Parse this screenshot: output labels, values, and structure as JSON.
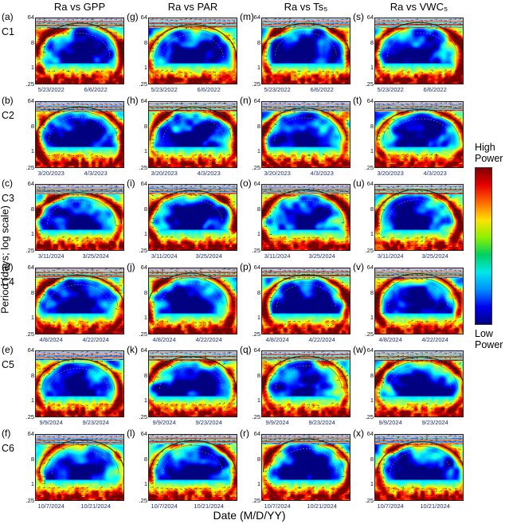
{
  "figure": {
    "x_axis_label": "Date (M/D/YY)",
    "y_axis_label": "Period (days; log scale)",
    "y_ticks": [
      "64",
      "8",
      "1",
      ".25"
    ],
    "column_titles": [
      "Ra vs GPP",
      "Ra vs PAR",
      "Ra vs Ts₅",
      "Ra vs VWC₅"
    ],
    "colorbar": {
      "top_label": "High Power",
      "bottom_label": "Low Power",
      "gradient": [
        "#7f0000",
        "#e80000",
        "#ff6a00",
        "#ffe100",
        "#8cf000",
        "#00d060",
        "#00e8e8",
        "#0090ff",
        "#0000f0",
        "#00007f"
      ]
    },
    "rows": [
      {
        "site": "C1",
        "letters": [
          "(a)",
          "(g)",
          "(m)",
          "(s)"
        ],
        "dates": [
          "5/23/2022",
          "6/6/2022"
        ]
      },
      {
        "site": "C2",
        "letters": [
          "(b)",
          "(h)",
          "(n)",
          "(t)"
        ],
        "dates": [
          "3/20/2023",
          "4/3/2023"
        ]
      },
      {
        "site": "C3",
        "letters": [
          "(c)",
          "(i)",
          "(o)",
          "(u)"
        ],
        "dates": [
          "3/11/2024",
          "3/25/2024"
        ]
      },
      {
        "site": "C4",
        "letters": [
          "(d)",
          "(j)",
          "(p)",
          "(v)"
        ],
        "dates": [
          "4/8/2024",
          "4/22/2024"
        ]
      },
      {
        "site": "C5",
        "letters": [
          "(e)",
          "(k)",
          "(q)",
          "(w)"
        ],
        "dates": [
          "9/9/2024",
          "9/23/2024"
        ]
      },
      {
        "site": "C6",
        "letters": [
          "(f)",
          "(l)",
          "(r)",
          "(x)"
        ],
        "dates": [
          "10/7/2024",
          "10/21/2024"
        ]
      }
    ]
  },
  "chart_data": {
    "type": "heatmap",
    "subtype": "wavelet-coherence-grid",
    "grid": {
      "rows": 6,
      "cols": 4
    },
    "column_variables": [
      "Ra vs GPP",
      "Ra vs PAR",
      "Ra vs Ts₅",
      "Ra vs VWC₅"
    ],
    "row_campaigns": [
      "C1",
      "C2",
      "C3",
      "C4",
      "C5",
      "C6"
    ],
    "x_axis": {
      "label": "Date (M/D/YY)",
      "tick_dates_by_row": [
        [
          "5/23/2022",
          "6/6/2022"
        ],
        [
          "3/20/2023",
          "4/3/2023"
        ],
        [
          "3/11/2024",
          "3/25/2024"
        ],
        [
          "4/8/2024",
          "4/22/2024"
        ],
        [
          "9/9/2024",
          "9/23/2024"
        ],
        [
          "10/7/2024",
          "10/21/2024"
        ]
      ]
    },
    "y_axis": {
      "label": "Period (days; log scale)",
      "scale": "log",
      "ticks": [
        64,
        8,
        1,
        0.25
      ],
      "range": [
        0.25,
        64
      ]
    },
    "color_scale": {
      "high": "High Power",
      "low": "Low Power",
      "colormap": "jet",
      "legend_position": "right"
    },
    "panels": [
      {
        "letter": "a",
        "campaign": "C1",
        "pair": "Ra vs GPP"
      },
      {
        "letter": "g",
        "campaign": "C1",
        "pair": "Ra vs PAR"
      },
      {
        "letter": "m",
        "campaign": "C1",
        "pair": "Ra vs Ts₅"
      },
      {
        "letter": "s",
        "campaign": "C1",
        "pair": "Ra vs VWC₅"
      },
      {
        "letter": "b",
        "campaign": "C2",
        "pair": "Ra vs GPP"
      },
      {
        "letter": "h",
        "campaign": "C2",
        "pair": "Ra vs PAR"
      },
      {
        "letter": "n",
        "campaign": "C2",
        "pair": "Ra vs Ts₅"
      },
      {
        "letter": "t",
        "campaign": "C2",
        "pair": "Ra vs VWC₅"
      },
      {
        "letter": "c",
        "campaign": "C3",
        "pair": "Ra vs GPP"
      },
      {
        "letter": "i",
        "campaign": "C3",
        "pair": "Ra vs PAR"
      },
      {
        "letter": "o",
        "campaign": "C3",
        "pair": "Ra vs Ts₅"
      },
      {
        "letter": "u",
        "campaign": "C3",
        "pair": "Ra vs VWC₅"
      },
      {
        "letter": "d",
        "campaign": "C4",
        "pair": "Ra vs GPP"
      },
      {
        "letter": "j",
        "campaign": "C4",
        "pair": "Ra vs PAR"
      },
      {
        "letter": "p",
        "campaign": "C4",
        "pair": "Ra vs Ts₅"
      },
      {
        "letter": "v",
        "campaign": "C4",
        "pair": "Ra vs VWC₅"
      },
      {
        "letter": "e",
        "campaign": "C5",
        "pair": "Ra vs GPP"
      },
      {
        "letter": "k",
        "campaign": "C5",
        "pair": "Ra vs PAR"
      },
      {
        "letter": "q",
        "campaign": "C5",
        "pair": "Ra vs Ts₅"
      },
      {
        "letter": "w",
        "campaign": "C5",
        "pair": "Ra vs VWC₅"
      },
      {
        "letter": "f",
        "campaign": "C6",
        "pair": "Ra vs GPP"
      },
      {
        "letter": "l",
        "campaign": "C6",
        "pair": "Ra vs PAR"
      },
      {
        "letter": "r",
        "campaign": "C6",
        "pair": "Ra vs Ts₅"
      },
      {
        "letter": "x",
        "campaign": "C6",
        "pair": "Ra vs VWC₅"
      }
    ],
    "visual_pattern": "Each panel is a wavelet coherence power spectrum: a dome-shaped high-power (green/red) significance ring with phase arrows spans mid periods, the dome interior at periods ~1-8 days is low power (blue/cyan), sub-daily periods near the bottom show patchy high power (red/yellow), and long periods at the top show pale striped bands with arrows."
  }
}
